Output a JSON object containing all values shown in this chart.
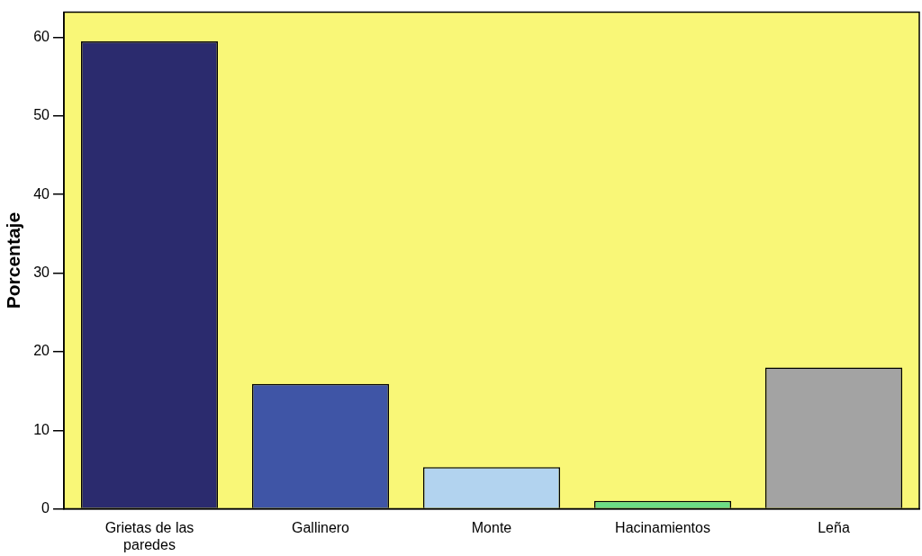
{
  "chart_data": {
    "type": "bar",
    "ylabel": "Porcentaje",
    "categories": [
      "Grietas de las paredes",
      "Gallinero",
      "Monte",
      "Hacinamientos",
      "Leña"
    ],
    "values": [
      59.5,
      15.9,
      5.3,
      1.0,
      18.0
    ],
    "colors": [
      "#2b2b6e",
      "#3f55a6",
      "#b2d3ef",
      "#6bdc86",
      "#a3a3a3"
    ],
    "ylim": [
      0,
      63.2
    ],
    "yticks": [
      0,
      10,
      20,
      30,
      40,
      50,
      60
    ],
    "grid": false,
    "legend": false
  }
}
